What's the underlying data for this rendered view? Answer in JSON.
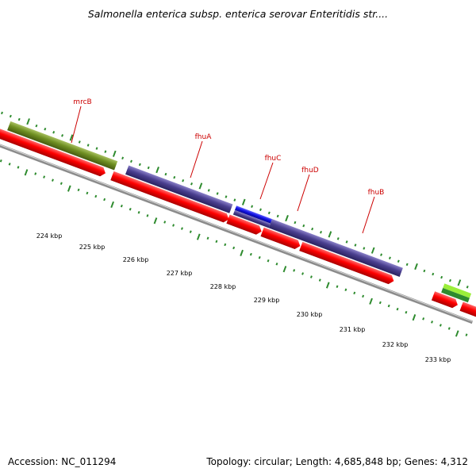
{
  "title": "Salmonella enterica subsp. enterica serovar Enteritidis str....",
  "footer": {
    "accession": "Accession: NC_011294",
    "summary": "Topology: circular; Length: 4,685,848 bp; Genes: 4,312"
  },
  "colors": {
    "backbone": "#8c8c8c",
    "cds": "#ff0000",
    "cds_dark": "#a80000",
    "mrcB": "#6f8f22",
    "fhu": "#4a3f8f",
    "fhuC": "#1010e0",
    "green_light": "#9bee3a",
    "green_dark": "#2e8b2e",
    "magenta": "#ff1493",
    "tick": "#2e8b2e",
    "label": "#cc0000"
  },
  "genes": [
    {
      "name": "mrcB"
    },
    {
      "name": "fhuA"
    },
    {
      "name": "fhuC"
    },
    {
      "name": "fhuD"
    },
    {
      "name": "fhuB"
    }
  ],
  "scale_ticks": [
    {
      "label": "224 kbp"
    },
    {
      "label": "225 kbp"
    },
    {
      "label": "226 kbp"
    },
    {
      "label": "227 kbp"
    },
    {
      "label": "228 kbp"
    },
    {
      "label": "229 kbp"
    },
    {
      "label": "230 kbp"
    },
    {
      "label": "231 kbp"
    },
    {
      "label": "232 kbp"
    },
    {
      "label": "233 kbp"
    }
  ]
}
